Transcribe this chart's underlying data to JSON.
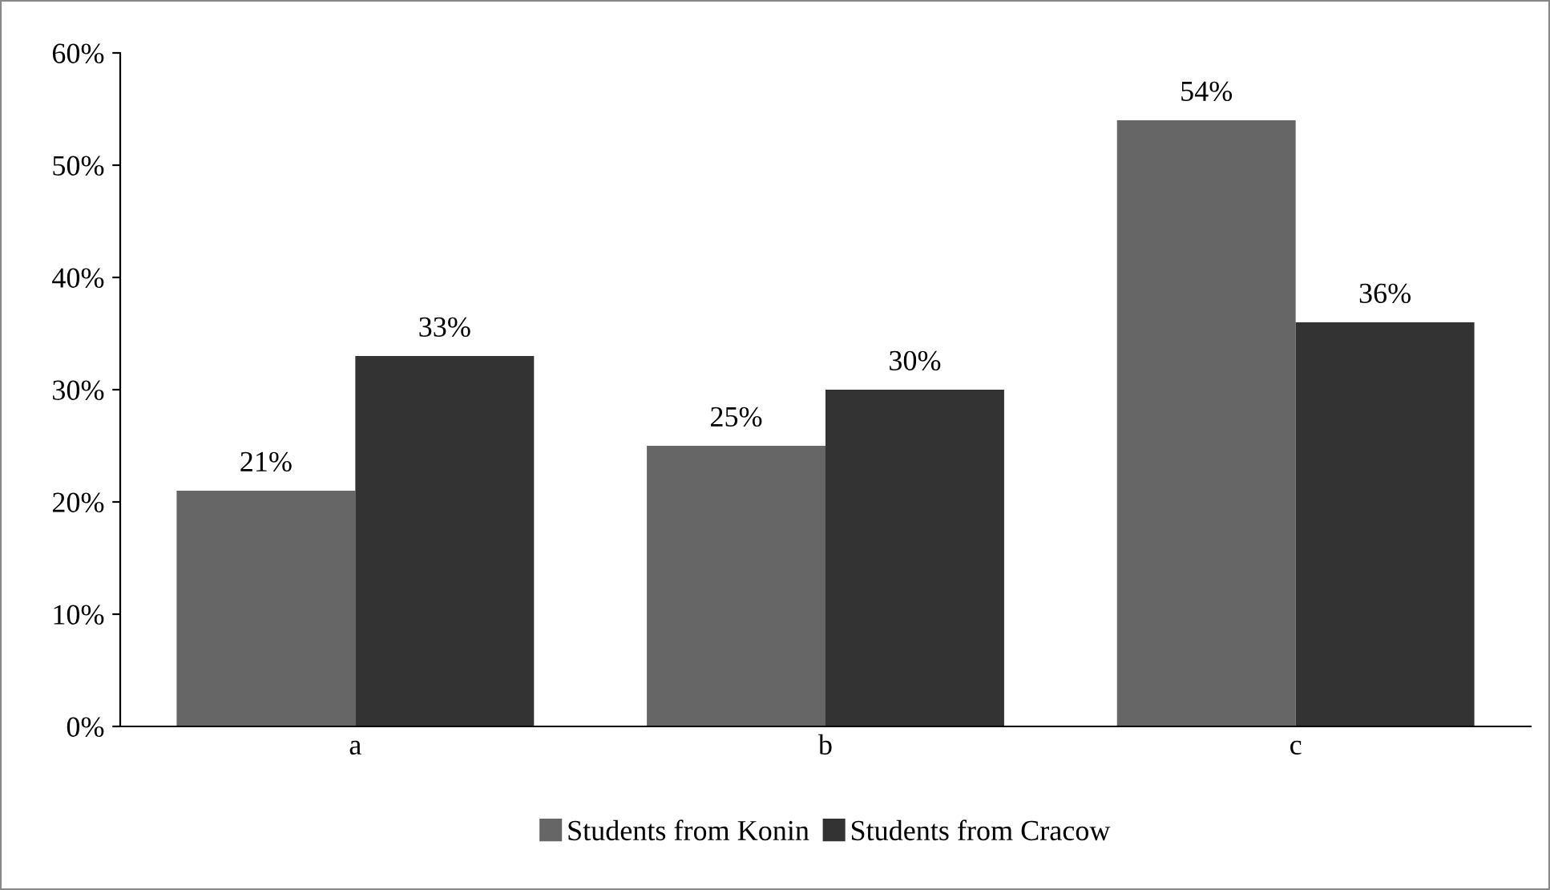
{
  "chart_data": {
    "type": "bar",
    "categories": [
      "a",
      "b",
      "c"
    ],
    "series": [
      {
        "name": "Students from Konin",
        "color": "#666666",
        "values": [
          21,
          25,
          54
        ],
        "value_labels": [
          "21%",
          "25%",
          "54%"
        ]
      },
      {
        "name": "Students from Cracow",
        "color": "#333333",
        "values": [
          33,
          30,
          36
        ],
        "value_labels": [
          "33%",
          "30%",
          "36%"
        ]
      }
    ],
    "ylim": [
      0,
      60
    ],
    "yticks": [
      {
        "value": 0,
        "label": "0%"
      },
      {
        "value": 10,
        "label": "10%"
      },
      {
        "value": 20,
        "label": "20%"
      },
      {
        "value": 30,
        "label": "30%"
      },
      {
        "value": 40,
        "label": "40%"
      },
      {
        "value": 50,
        "label": "50%"
      },
      {
        "value": 60,
        "label": "60%"
      }
    ],
    "grid": false,
    "legend": "bottom"
  }
}
